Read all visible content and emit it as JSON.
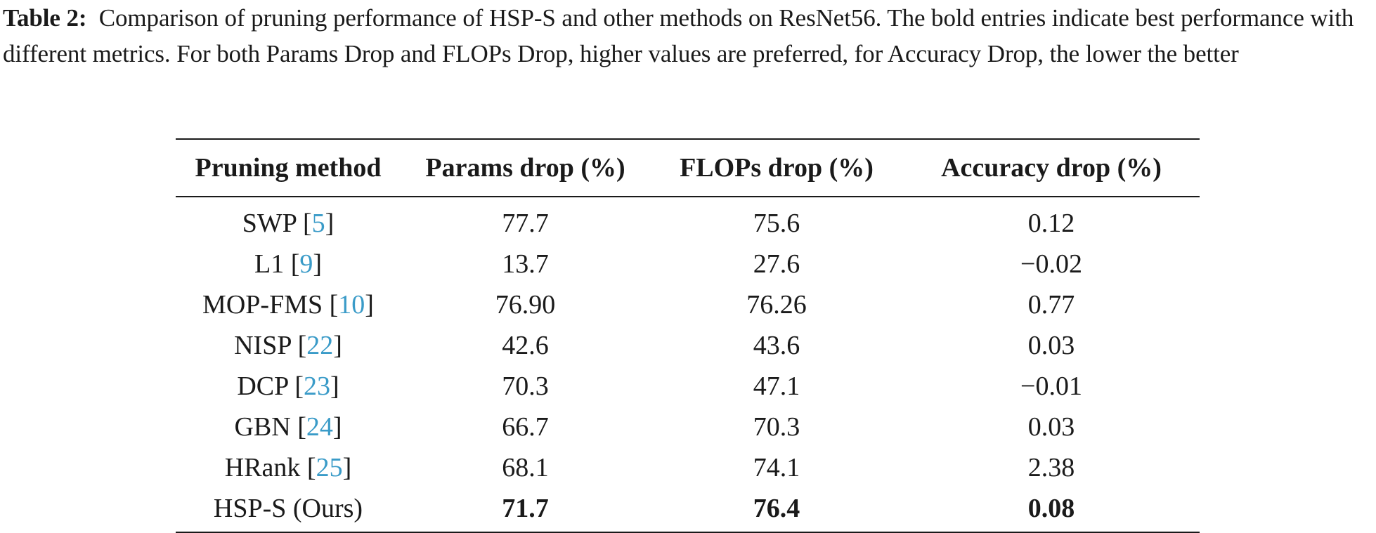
{
  "caption": {
    "label": "Table 2:",
    "text": "Comparison of pruning performance of HSP-S and other methods on ResNet56. The bold entries indicate best performance with different metrics. For both Params Drop and FLOPs Drop, higher values are preferred, for Accuracy Drop, the lower the better"
  },
  "table": {
    "headers": [
      "Pruning method",
      "Params drop (%)",
      "FLOPs drop (%)",
      "Accuracy drop (%)"
    ],
    "rows": [
      {
        "method": "SWP",
        "ref": "5",
        "params": "77.7",
        "flops": "75.6",
        "accuracy": "0.12"
      },
      {
        "method": "L1",
        "ref": "9",
        "params": "13.7",
        "flops": "27.6",
        "accuracy": "−0.02"
      },
      {
        "method": "MOP-FMS",
        "ref": "10",
        "params": "76.90",
        "flops": "76.26",
        "accuracy": "0.77"
      },
      {
        "method": "NISP",
        "ref": "22",
        "params": "42.6",
        "flops": "43.6",
        "accuracy": "0.03"
      },
      {
        "method": "DCP",
        "ref": "23",
        "params": "70.3",
        "flops": "47.1",
        "accuracy": "−0.01"
      },
      {
        "method": "GBN",
        "ref": "24",
        "params": "66.7",
        "flops": "70.3",
        "accuracy": "0.03"
      },
      {
        "method": "HRank",
        "ref": "25",
        "params": "68.1",
        "flops": "74.1",
        "accuracy": "2.38"
      },
      {
        "method": "HSP-S (Ours)",
        "ref": "",
        "params": "71.7",
        "flops": "76.4",
        "accuracy": "0.08"
      }
    ]
  }
}
